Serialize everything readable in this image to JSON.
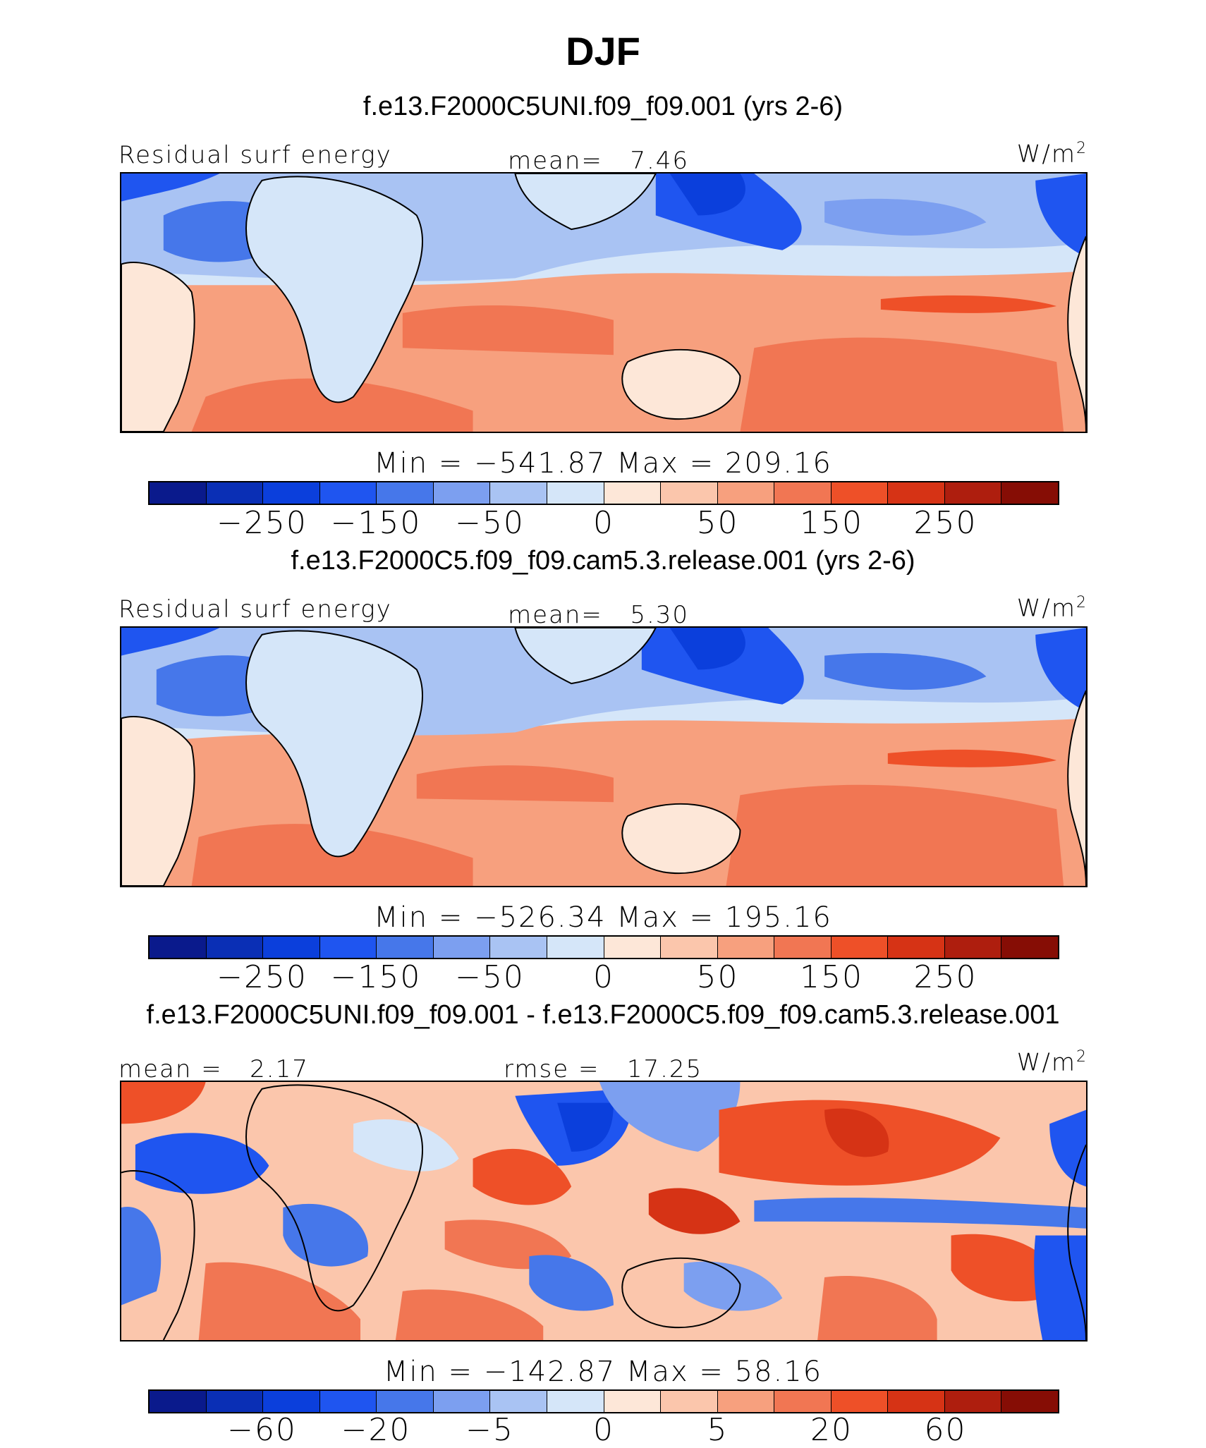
{
  "figure_title": "DJF",
  "colors": {
    "scale": [
      "#0a1a8c",
      "#0a2fb5",
      "#0b3fdc",
      "#1f55f0",
      "#4677ea",
      "#7c9ff0",
      "#a9c3f3",
      "#d5e6f9",
      "#fde7d8",
      "#fbc6ac",
      "#f7a07e",
      "#f17653",
      "#ee5028",
      "#d63315",
      "#ae1e0e",
      "#860d05"
    ],
    "land": "#fde7d8",
    "coast": "#000000"
  },
  "panels": [
    {
      "id": "panel-1",
      "case_title": "f.e13.F2000C5UNI.f09_f09.001 (yrs 2-6)",
      "left_label": "Residual surf energy",
      "center_label": "mean=   7.46",
      "units": {
        "base": "W/m",
        "exp": "2"
      },
      "minmax": "Min = −541.87 Max = 209.16",
      "colorbar_labels": [
        "−250",
        "−150",
        "−50",
        "0",
        "50",
        "150",
        "250"
      ],
      "colorbar_label_positions": [
        2,
        4,
        6,
        8,
        10,
        12,
        14
      ]
    },
    {
      "id": "panel-2",
      "case_title": "f.e13.F2000C5.f09_f09.cam5.3.release.001 (yrs 2-6)",
      "left_label": "Residual surf energy",
      "center_label": "mean=   5.30",
      "units": {
        "base": "W/m",
        "exp": "2"
      },
      "minmax": "Min = −526.34 Max = 195.16",
      "colorbar_labels": [
        "−250",
        "−150",
        "−50",
        "0",
        "50",
        "150",
        "250"
      ],
      "colorbar_label_positions": [
        2,
        4,
        6,
        8,
        10,
        12,
        14
      ]
    },
    {
      "id": "panel-3",
      "case_title": "f.e13.F2000C5UNI.f09_f09.001 - f.e13.F2000C5.f09_f09.cam5.3.release.001",
      "left_label": "mean =   2.17",
      "center_label": "rmse =   17.25",
      "units": {
        "base": "W/m",
        "exp": "2"
      },
      "minmax": "Min = −142.87 Max =  58.16",
      "colorbar_labels": [
        "−60",
        "−20",
        "−5",
        "0",
        "5",
        "20",
        "60"
      ],
      "colorbar_label_positions": [
        2,
        4,
        6,
        8,
        10,
        12,
        14
      ]
    }
  ]
}
